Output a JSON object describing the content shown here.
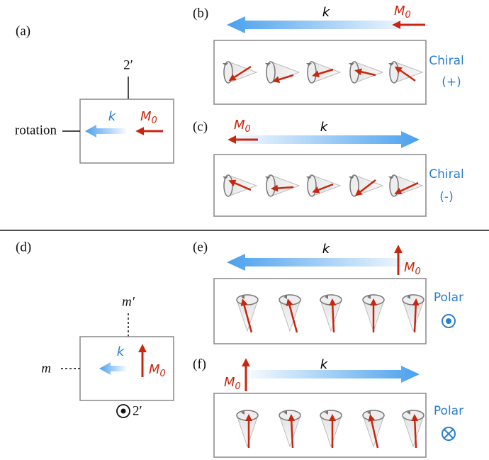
{
  "panels": {
    "a": {
      "label": "(a)",
      "axis_top": "2′",
      "axis_left": "rotation",
      "k": "k",
      "m0": {
        "symbol": "M",
        "subscript": "0"
      }
    },
    "b": {
      "label": "(b)",
      "k": "k",
      "m0": {
        "symbol": "M",
        "subscript": "0"
      },
      "kind": "Chiral",
      "sign": "(+)"
    },
    "c": {
      "label": "(c)",
      "k": "k",
      "m0": {
        "symbol": "M",
        "subscript": "0"
      },
      "kind": "Chiral",
      "sign": "(-)"
    },
    "d": {
      "label": "(d)",
      "axis_top": "m′",
      "axis_left": "m",
      "axis_normal": "2′",
      "k": "k",
      "m0": {
        "symbol": "M",
        "subscript": "0"
      }
    },
    "e": {
      "label": "(e)",
      "k": "k",
      "m0": {
        "symbol": "M",
        "subscript": "0"
      },
      "kind": "Polar"
    },
    "f": {
      "label": "(f)",
      "k": "k",
      "m0": {
        "symbol": "M",
        "subscript": "0"
      },
      "kind": "Polar"
    }
  }
}
